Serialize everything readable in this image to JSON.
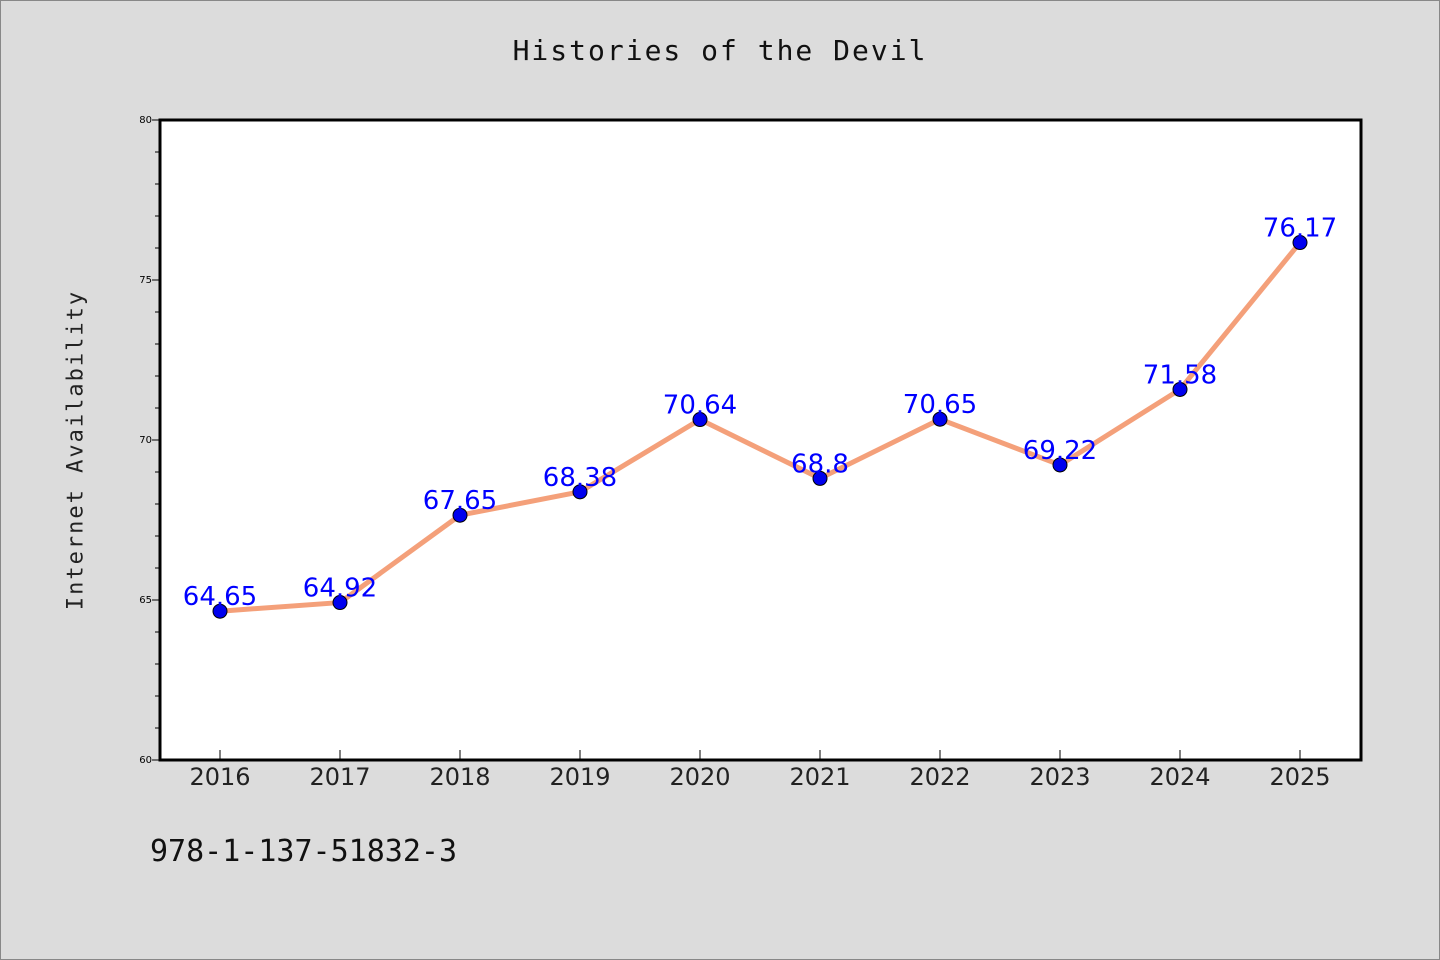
{
  "chart_data": {
    "type": "line",
    "title": "Histories of the Devil",
    "xlabel": "",
    "ylabel": "Internet Availability",
    "categories": [
      "2016",
      "2017",
      "2018",
      "2019",
      "2020",
      "2021",
      "2022",
      "2023",
      "2024",
      "2025"
    ],
    "series": [
      {
        "values": [
          64.65,
          64.92,
          67.65,
          68.38,
          70.64,
          68.8,
          70.65,
          69.22,
          71.58,
          76.17
        ],
        "data_labels": [
          "64.65",
          "64.92",
          "67.65",
          "68.38",
          "70.64",
          "68.8",
          "70.65",
          "69.22",
          "71.58",
          "76.17"
        ],
        "line_color": "#f4a07a",
        "marker_color": "#0000ee"
      }
    ],
    "ylim": [
      60,
      80
    ],
    "yticks": [
      "60",
      "65",
      "70",
      "75",
      "80"
    ],
    "grid": false,
    "legend": "none"
  },
  "footer": {
    "code": "978-1-137-51832-3"
  },
  "colors": {
    "background": "#dcdcdc",
    "plot_area": "#ffffff",
    "label_text": "#0000ff"
  }
}
